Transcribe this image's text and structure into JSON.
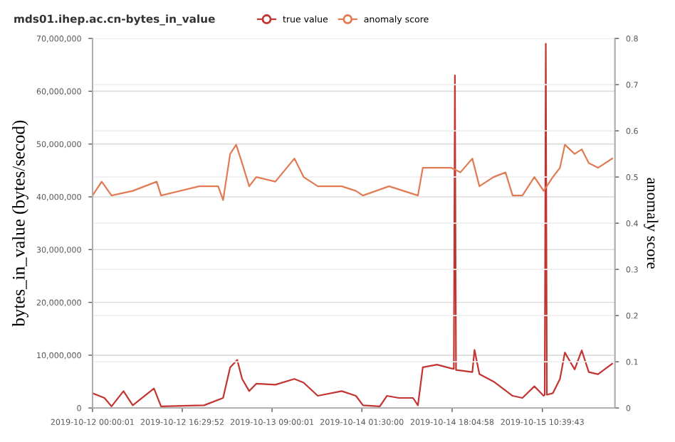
{
  "chart_data": {
    "type": "line",
    "title": "mds01.ihep.ac.cn-bytes_in_value",
    "ylabel": "bytes_in_value (bytes/secod)",
    "y2label": "anomaly score",
    "legend": "top",
    "grid": "y",
    "xlim": [
      "2019-10-12T00:00",
      "2019-10-16T00:00"
    ],
    "xticks": [
      {
        "value": "2019-10-12T00:00",
        "label": "2019-10-12 00:00:01"
      },
      {
        "value": "2019-10-12T16:30",
        "label": "2019-10-12 16:29:52"
      },
      {
        "value": "2019-10-13T09:00",
        "label": "2019-10-13 09:00:01"
      },
      {
        "value": "2019-10-14T01:30",
        "label": "2019-10-14 01:30:00"
      },
      {
        "value": "2019-10-14T18:05",
        "label": "2019-10-14 18:04:58"
      },
      {
        "value": "2019-10-15T10:40",
        "label": "2019-10-15 10:39:43"
      }
    ],
    "ylim": [
      0,
      70000000
    ],
    "yticks": [
      0,
      {
        "value": 10000000,
        "label": "10,000,000"
      },
      {
        "value": 20000000,
        "label": "20,000,000"
      },
      {
        "value": 30000000,
        "label": "30,000,000"
      },
      {
        "value": 40000000,
        "label": "40,000,000"
      },
      {
        "value": 50000000,
        "label": "50,000,000"
      },
      {
        "value": 60000000,
        "label": "60,000,000"
      },
      {
        "value": 70000000,
        "label": "70,000,000"
      }
    ],
    "y2lim": [
      0,
      0.8
    ],
    "y2ticks": [
      0,
      0.1,
      0.2,
      0.3,
      0.4,
      0.5,
      0.6,
      0.7,
      0.8
    ],
    "series": [
      {
        "name": "true value",
        "color": "#c23531",
        "x": [
          "2019-10-12T00:00",
          "2019-10-12T02:12",
          "2019-10-12T03:30",
          "2019-10-12T05:42",
          "2019-10-12T07:24",
          "2019-10-12T11:18",
          "2019-10-12T12:36",
          "2019-10-12T20:30",
          "2019-10-13T00:00",
          "2019-10-13T01:18",
          "2019-10-13T02:36",
          "2019-10-13T03:30",
          "2019-10-13T04:48",
          "2019-10-13T06:06",
          "2019-10-13T09:36",
          "2019-10-13T13:06",
          "2019-10-13T14:48",
          "2019-10-13T17:24",
          "2019-10-13T21:48",
          "2019-10-14T00:24",
          "2019-10-14T01:42",
          "2019-10-14T04:48",
          "2019-10-14T06:06",
          "2019-10-14T08:18",
          "2019-10-14T10:54",
          "2019-10-14T11:48",
          "2019-10-14T12:42",
          "2019-10-14T15:18",
          "2019-10-14T17:54",
          "2019-10-14T18:24",
          "2019-10-14T18:36",
          "2019-10-14T18:48",
          "2019-10-14T19:36",
          "2019-10-14T21:48",
          "2019-10-14T22:12",
          "2019-10-14T23:06",
          "2019-10-15T01:42",
          "2019-10-15T05:12",
          "2019-10-15T07:00",
          "2019-10-15T09:12",
          "2019-10-15T10:54",
          "2019-10-15T11:06",
          "2019-10-15T11:18",
          "2019-10-15T11:30",
          "2019-10-15T12:36",
          "2019-10-15T13:54",
          "2019-10-15T14:48",
          "2019-10-15T16:36",
          "2019-10-15T17:54",
          "2019-10-15T19:12",
          "2019-10-15T20:54",
          "2019-10-15T23:30"
        ],
        "values": [
          2800000,
          1900000,
          300000,
          3200000,
          500000,
          3700000,
          300000,
          500000,
          1900000,
          7700000,
          9100000,
          5500000,
          3200000,
          4600000,
          4400000,
          5500000,
          4800000,
          2300000,
          3200000,
          2300000,
          500000,
          300000,
          2300000,
          1900000,
          1900000,
          500000,
          7700000,
          8200000,
          7500000,
          7400000,
          63000000,
          7200000,
          7100000,
          6800000,
          11000000,
          6400000,
          5000000,
          2300000,
          1900000,
          4100000,
          2300000,
          2500000,
          69000000,
          2500000,
          2800000,
          5500000,
          10500000,
          7300000,
          10900000,
          6800000,
          6400000,
          8400000
        ]
      },
      {
        "name": "anomaly score",
        "color": "#e07b54",
        "axis": "y2",
        "x": [
          "2019-10-12T00:00",
          "2019-10-12T01:42",
          "2019-10-12T03:30",
          "2019-10-12T07:24",
          "2019-10-12T11:48",
          "2019-10-12T12:36",
          "2019-10-12T19:36",
          "2019-10-12T23:06",
          "2019-10-13T00:00",
          "2019-10-13T01:18",
          "2019-10-13T02:24",
          "2019-10-13T03:30",
          "2019-10-13T04:48",
          "2019-10-13T06:06",
          "2019-10-13T09:36",
          "2019-10-13T13:06",
          "2019-10-13T14:48",
          "2019-10-13T17:24",
          "2019-10-13T21:48",
          "2019-10-14T00:24",
          "2019-10-14T01:42",
          "2019-10-14T06:30",
          "2019-10-14T11:48",
          "2019-10-14T12:42",
          "2019-10-14T15:18",
          "2019-10-14T17:54",
          "2019-10-14T19:36",
          "2019-10-14T21:48",
          "2019-10-14T23:06",
          "2019-10-15T01:42",
          "2019-10-15T03:54",
          "2019-10-15T05:12",
          "2019-10-15T07:00",
          "2019-10-15T09:12",
          "2019-10-15T10:54",
          "2019-10-15T12:36",
          "2019-10-15T13:54",
          "2019-10-15T14:48",
          "2019-10-15T16:36",
          "2019-10-15T17:54",
          "2019-10-15T19:12",
          "2019-10-15T20:54",
          "2019-10-15T23:30"
        ],
        "values": [
          0.46,
          0.49,
          0.46,
          0.47,
          0.49,
          0.46,
          0.48,
          0.48,
          0.45,
          0.55,
          0.57,
          0.53,
          0.48,
          0.5,
          0.49,
          0.54,
          0.5,
          0.48,
          0.48,
          0.47,
          0.46,
          0.48,
          0.46,
          0.52,
          0.52,
          0.52,
          0.51,
          0.54,
          0.48,
          0.5,
          0.51,
          0.46,
          0.46,
          0.5,
          0.47,
          0.5,
          0.52,
          0.57,
          0.55,
          0.56,
          0.53,
          0.52,
          0.54
        ]
      }
    ]
  }
}
